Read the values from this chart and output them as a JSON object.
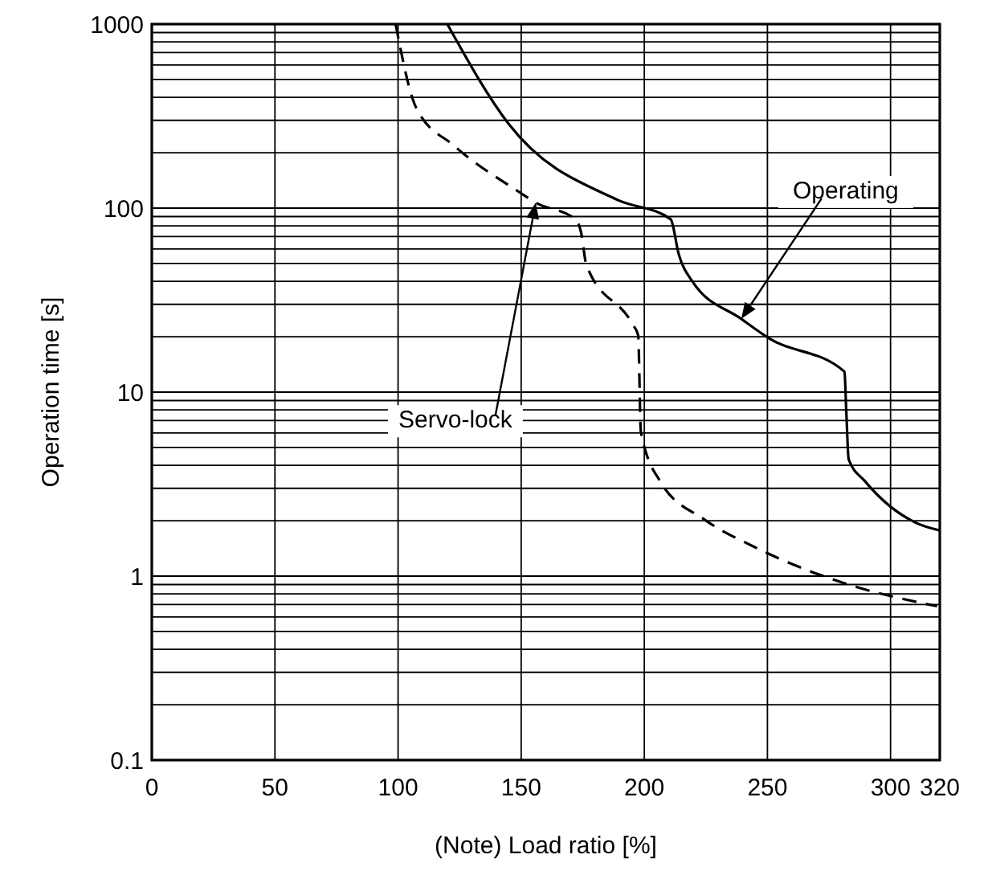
{
  "chart_data": {
    "type": "line",
    "xlabel": "(Note) Load ratio [%]",
    "ylabel": "Operation time [s]",
    "log": "y",
    "grid": true,
    "xlim": [
      0,
      320
    ],
    "ylim": [
      0.1,
      1000
    ],
    "xticks": [
      0,
      50,
      100,
      150,
      200,
      250,
      300,
      320
    ],
    "yticks": [
      0.1,
      1,
      10,
      100,
      1000
    ],
    "series": [
      {
        "color": "#000000",
        "line_style": "solid",
        "x": [
          120,
          145,
          189,
          210.7,
          214,
          219.5,
          239.4,
          250.4,
          281.3,
          282,
          283,
          289.6,
          309.9,
          320
        ],
        "values": [
          1000,
          286,
          111,
          87,
          56,
          40,
          25,
          19.7,
          12.9,
          8,
          4.3,
          3.28,
          1.96,
          1.77
        ]
      },
      {
        "color": "#000000",
        "line_style": "dashed",
        "x": [
          99,
          107.4,
          122.8,
          149.3,
          155.9,
          172,
          174.3,
          176.5,
          195.3,
          197.5,
          198.6,
          206.4,
          224.4,
          244.7,
          280.6,
          318.9
        ],
        "values": [
          1000,
          350,
          218,
          122,
          107,
          87,
          74,
          49,
          23.3,
          20.4,
          6.1,
          3.28,
          2.03,
          1.44,
          0.92,
          0.686
        ]
      }
    ],
    "annotations": [
      "Operating",
      "Servo-lock"
    ]
  }
}
